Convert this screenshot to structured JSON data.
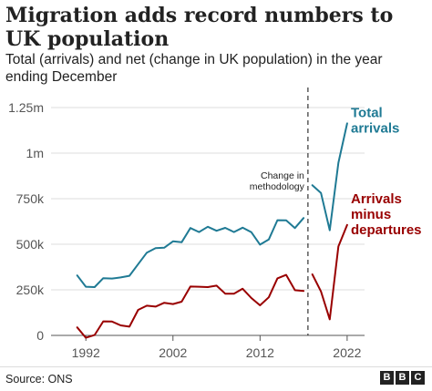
{
  "title": "Migration adds record numbers to UK population",
  "subtitle": "Total (arrivals) and net (change in UK population) in the year ending December",
  "source": "Source: ONS",
  "logo_letters": [
    "B",
    "B",
    "C"
  ],
  "chart_data": {
    "type": "line",
    "title": "Migration adds record numbers to UK population",
    "ylim": [
      0,
      1250000
    ],
    "yticks": [
      0,
      250000,
      500000,
      750000,
      1000000,
      1250000
    ],
    "ytick_labels": [
      "0",
      "250k",
      "500k",
      "750k",
      "1m",
      "1.25m"
    ],
    "xlim": [
      1988,
      2024
    ],
    "xticks": [
      1992,
      2002,
      2012,
      2022
    ],
    "xtick_labels": [
      "1992",
      "2002",
      "2012",
      "2022"
    ],
    "grid": true,
    "annotation": {
      "x": 2017.5,
      "lines": [
        "Change in",
        "methodology"
      ]
    },
    "series": [
      {
        "name": "Total arrivals",
        "label_lines": [
          "Total",
          "arrivals"
        ],
        "color": "#1f7a94",
        "segments": [
          {
            "x": [
              1991,
              1992,
              1993,
              1994,
              1995,
              1996,
              1997,
              1998,
              1999,
              2000,
              2001,
              2002,
              2003,
              2004,
              2005,
              2006,
              2007,
              2008,
              2009,
              2010,
              2011,
              2012,
              2013,
              2014,
              2015,
              2016,
              2017
            ],
            "y": [
              329000,
              267000,
              265000,
              314000,
              312000,
              318000,
              327000,
              391000,
              454000,
              479000,
              481000,
              516000,
              511000,
              589000,
              567000,
              596000,
              574000,
              590000,
              567000,
              591000,
              566000,
              498000,
              526000,
              632000,
              631000,
              589000,
              644000
            ]
          },
          {
            "x": [
              2018,
              2019,
              2020,
              2021,
              2022
            ],
            "y": [
              824000,
              781000,
              577000,
              947000,
              1163000
            ]
          }
        ]
      },
      {
        "name": "Arrivals minus departures",
        "label_lines": [
          "Arrivals",
          "minus",
          "departures"
        ],
        "color": "#990000",
        "segments": [
          {
            "x": [
              1991,
              1992,
              1993,
              1994,
              1995,
              1996,
              1997,
              1998,
              1999,
              2000,
              2001,
              2002,
              2003,
              2004,
              2005,
              2006,
              2007,
              2008,
              2009,
              2010,
              2011,
              2012,
              2013,
              2014,
              2015,
              2016,
              2017
            ],
            "y": [
              44000,
              -13000,
              2000,
              77000,
              76000,
              55000,
              48000,
              140000,
              163000,
              158000,
              179000,
              172000,
              185000,
              268000,
              267000,
              265000,
              273000,
              229000,
              229000,
              256000,
              205000,
              165000,
              209000,
              313000,
              332000,
              248000,
              244000
            ]
          },
          {
            "x": [
              2018,
              2019,
              2020,
              2021,
              2022
            ],
            "y": [
              335000,
              241000,
              88000,
              488000,
              606000
            ]
          }
        ]
      }
    ]
  }
}
